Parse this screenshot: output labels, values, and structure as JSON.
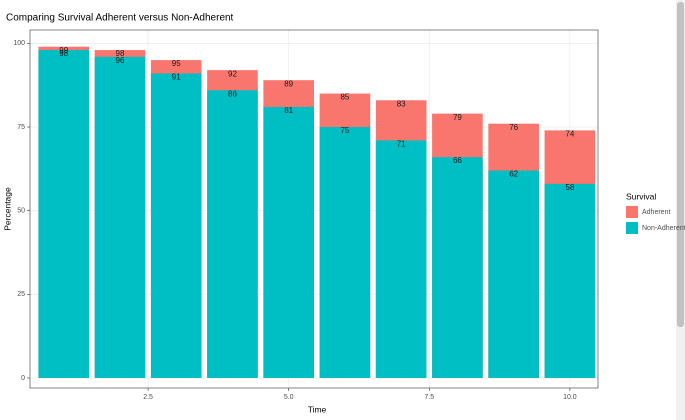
{
  "chart_data": {
    "type": "bar",
    "title": "Comparing Survival Adherent versus Non-Adherent",
    "x_label": "Time",
    "y_label": "Percentage",
    "legend_title": "Survival",
    "x": [
      1,
      2,
      3,
      4,
      5,
      6,
      7,
      8,
      9,
      10
    ],
    "series": [
      {
        "name": "Adherent",
        "color": "#F8766D",
        "values": [
          99,
          98,
          95,
          92,
          89,
          85,
          83,
          79,
          76,
          74
        ]
      },
      {
        "name": "Non-Adherent",
        "color": "#00BFC4",
        "values": [
          98,
          96,
          91,
          86,
          81,
          75,
          71,
          66,
          62,
          58
        ]
      }
    ],
    "xlim": [
      0.4,
      10.5
    ],
    "xticks": [
      2.5,
      {
        "value": 5,
        "label": "5.0"
      },
      7.5,
      {
        "value": 10,
        "label": "10.0"
      }
    ],
    "ylim": [
      -3,
      104
    ],
    "yticks": [
      0,
      25,
      50,
      75,
      100
    ],
    "grid": true,
    "legend": "right"
  }
}
